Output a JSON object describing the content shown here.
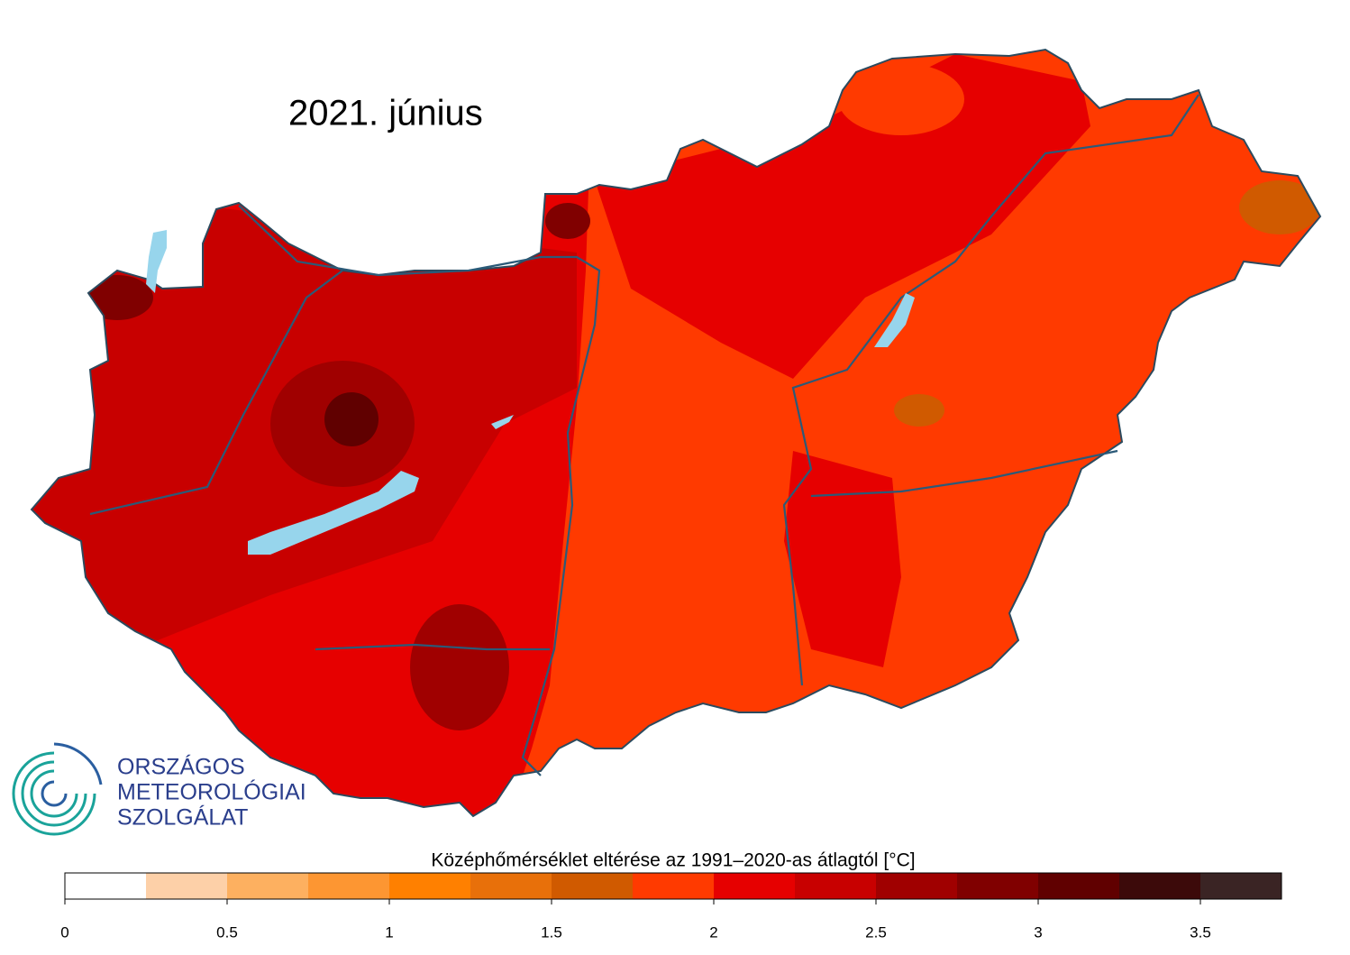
{
  "title": "2021. június",
  "logo": {
    "lines": [
      "ORSZÁGOS",
      "METEOROLÓGIAI",
      "SZOLGÁLAT"
    ]
  },
  "legend": {
    "title": "Középhőmérséklet eltérése az 1991–2020-as átlagtól [°C]",
    "lim": [
      0,
      3.75
    ],
    "bins": [
      0,
      0.25,
      0.5,
      0.75,
      1,
      1.25,
      1.5,
      1.75,
      2,
      2.25,
      2.5,
      2.75,
      3,
      3.25,
      3.5,
      3.75
    ],
    "colors": [
      "#ffffff",
      "#fdd0a8",
      "#fdb060",
      "#fd9632",
      "#ff8000",
      "#e8700a",
      "#d05a00",
      "#ff3a00",
      "#e60000",
      "#c80000",
      "#a00000",
      "#800000",
      "#600000",
      "#3c0a0a",
      "#3a2424"
    ],
    "ticks": [
      0,
      0.5,
      1,
      1.5,
      2,
      2.5,
      3,
      3.5
    ]
  }
}
